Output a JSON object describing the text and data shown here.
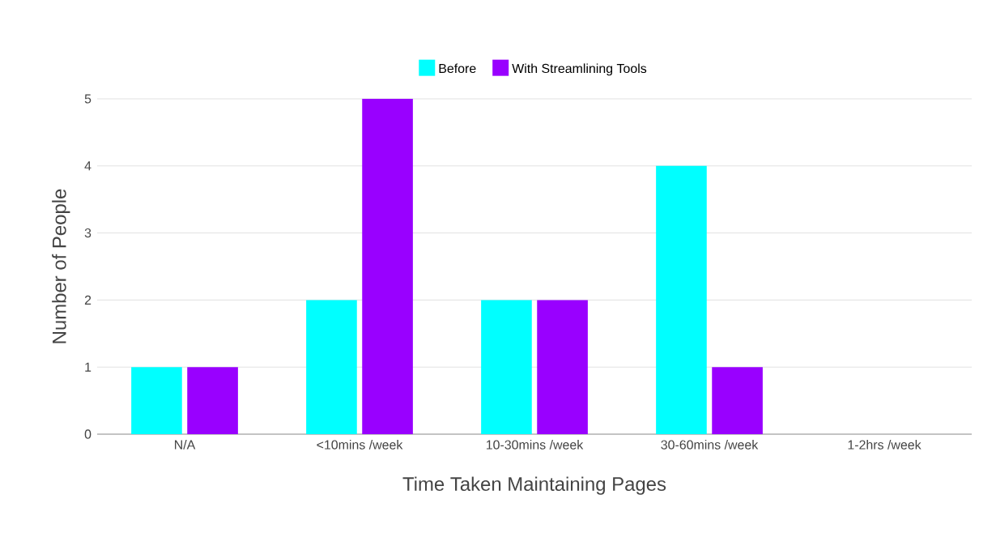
{
  "chart_data": {
    "type": "bar",
    "categories": [
      "N/A",
      "<10mins /week",
      "10-30mins /week",
      "30-60mins /week",
      "1-2hrs /week"
    ],
    "series": [
      {
        "name": "Before",
        "color": "#00ffff",
        "values": [
          1,
          2,
          2,
          4,
          0
        ]
      },
      {
        "name": "With Streamlining Tools",
        "color": "#9900ff",
        "values": [
          1,
          5,
          2,
          1,
          0
        ]
      }
    ],
    "xlabel": "Time Taken Maintaining Pages",
    "ylabel": "Number of People",
    "ylim": [
      0,
      5
    ],
    "yticks": [
      0,
      1,
      2,
      3,
      4,
      5
    ],
    "grid": "y",
    "legend": "top"
  }
}
